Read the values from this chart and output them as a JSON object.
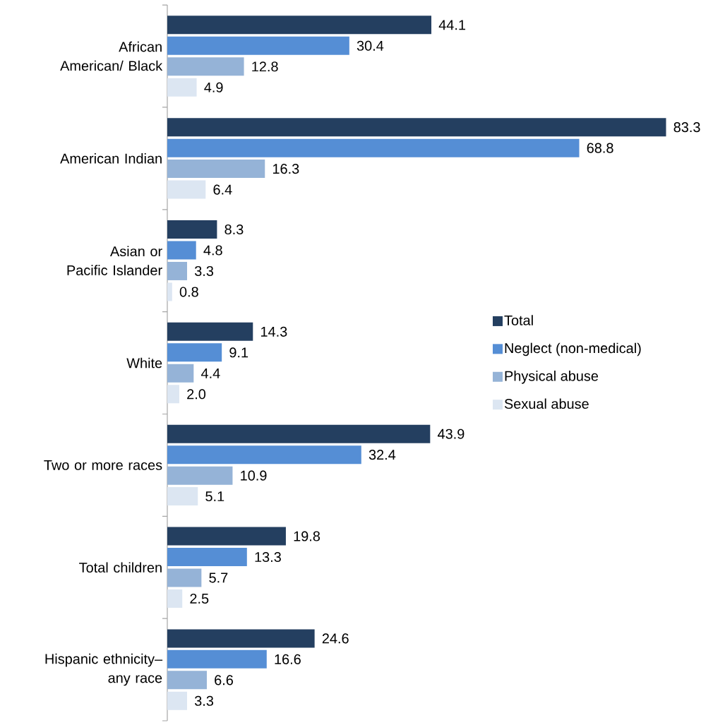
{
  "chart_data": {
    "type": "bar",
    "orientation": "horizontal",
    "categories": [
      "African American/ Black",
      "American Indian",
      "Asian or Pacific Islander",
      "White",
      "Two or more races",
      "Total children",
      "Hispanic ethnicity– any race"
    ],
    "series": [
      {
        "name": "Total",
        "color": "#243f60",
        "values": [
          44.1,
          83.3,
          8.3,
          14.3,
          43.9,
          19.8,
          24.6
        ],
        "value_labels": [
          "44.1",
          "83.3",
          "8.3",
          "14.3",
          "43.9",
          "19.8",
          "24.6"
        ]
      },
      {
        "name": "Neglect (non-medical)",
        "color": "#558ed5",
        "values": [
          30.4,
          68.8,
          4.8,
          9.1,
          32.4,
          13.3,
          16.6
        ],
        "value_labels": [
          "30.4",
          "68.8",
          "4.8",
          "9.1",
          "32.4",
          "13.3",
          "16.6"
        ]
      },
      {
        "name": "Physical abuse",
        "color": "#95b3d7",
        "values": [
          12.8,
          16.3,
          3.3,
          4.4,
          10.9,
          5.7,
          6.6
        ],
        "value_labels": [
          "12.8",
          "16.3",
          "3.3",
          "4.4",
          "10.9",
          "5.7",
          "6.6"
        ]
      },
      {
        "name": "Sexual abuse",
        "color": "#dce6f2",
        "values": [
          4.9,
          6.4,
          0.8,
          2.0,
          5.1,
          2.5,
          3.3
        ],
        "value_labels": [
          "4.9",
          "6.4",
          "0.8",
          "2.0",
          "5.1",
          "2.5",
          "3.3"
        ]
      }
    ],
    "legend": "right"
  }
}
